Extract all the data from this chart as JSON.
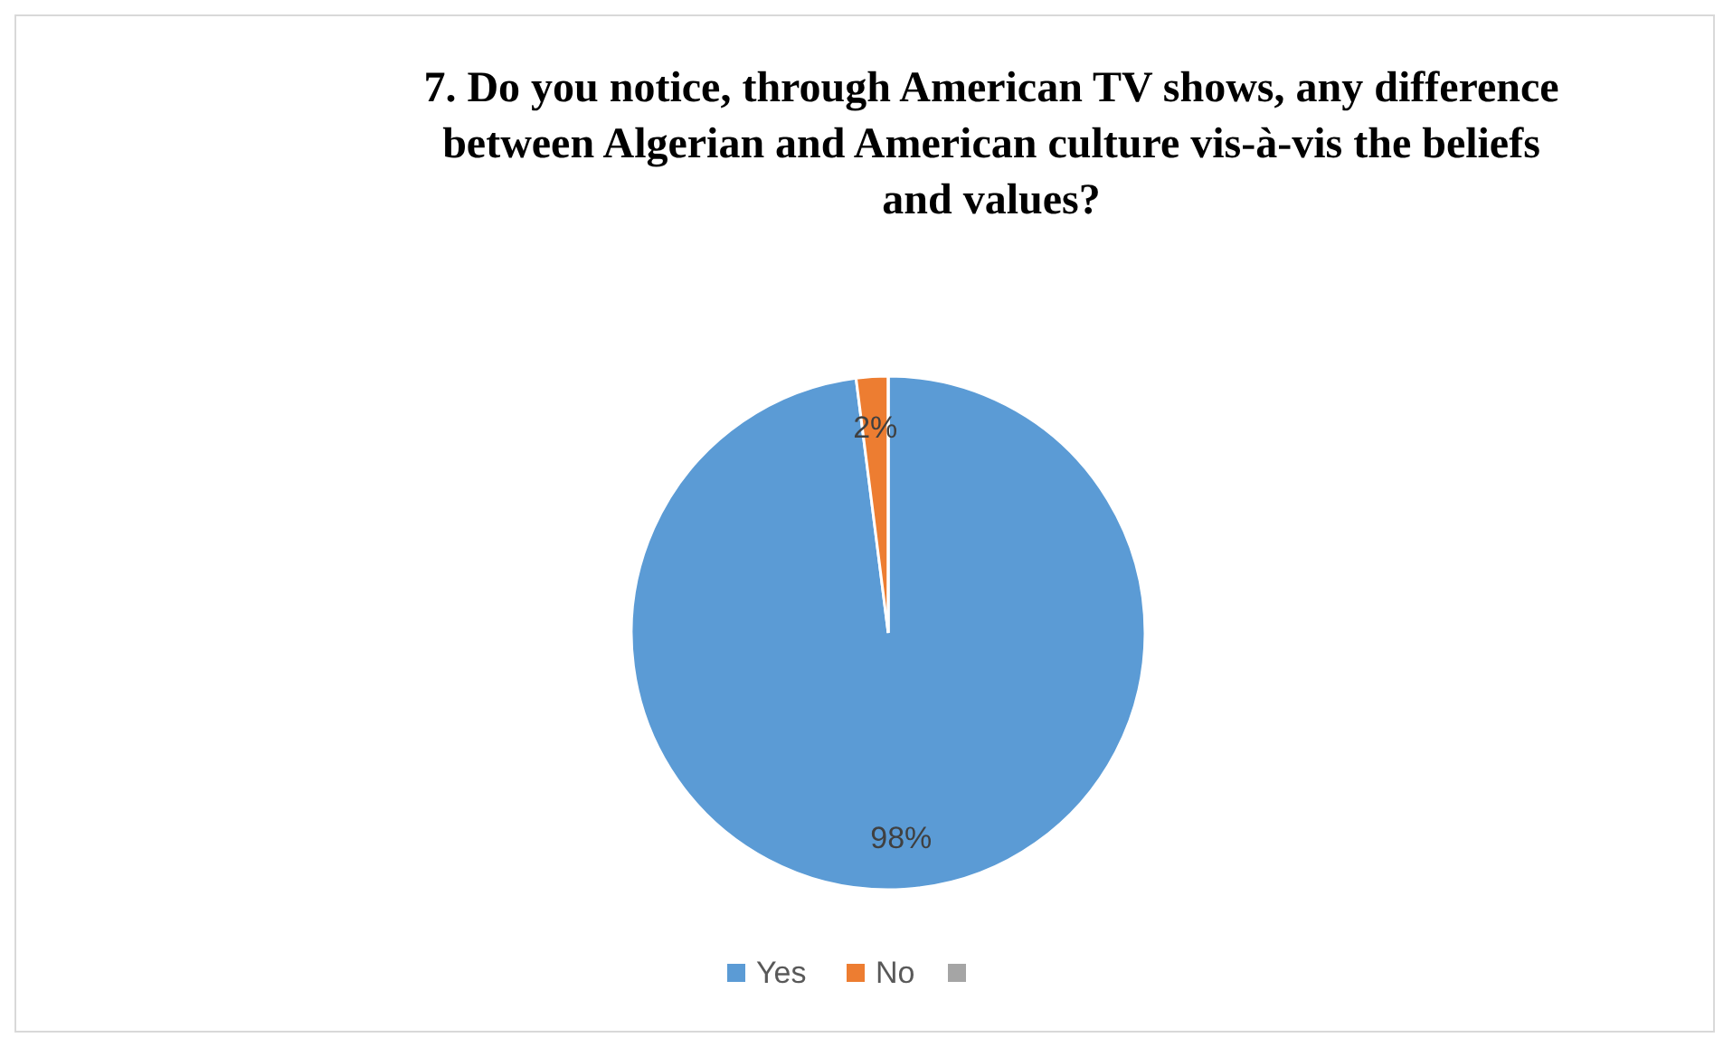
{
  "chart_data": {
    "type": "pie",
    "title": "7. Do you notice, through American TV shows, any difference between Algerian and American culture vis-à-vis the beliefs and values?",
    "categories": [
      "Yes",
      "No",
      null
    ],
    "values": [
      98,
      2,
      0
    ],
    "colors": [
      "#5b9bd5",
      "#ed7d31",
      "#a5a5a5"
    ],
    "value_labels": [
      "98%",
      "2%",
      null
    ],
    "legend": "bottom"
  }
}
